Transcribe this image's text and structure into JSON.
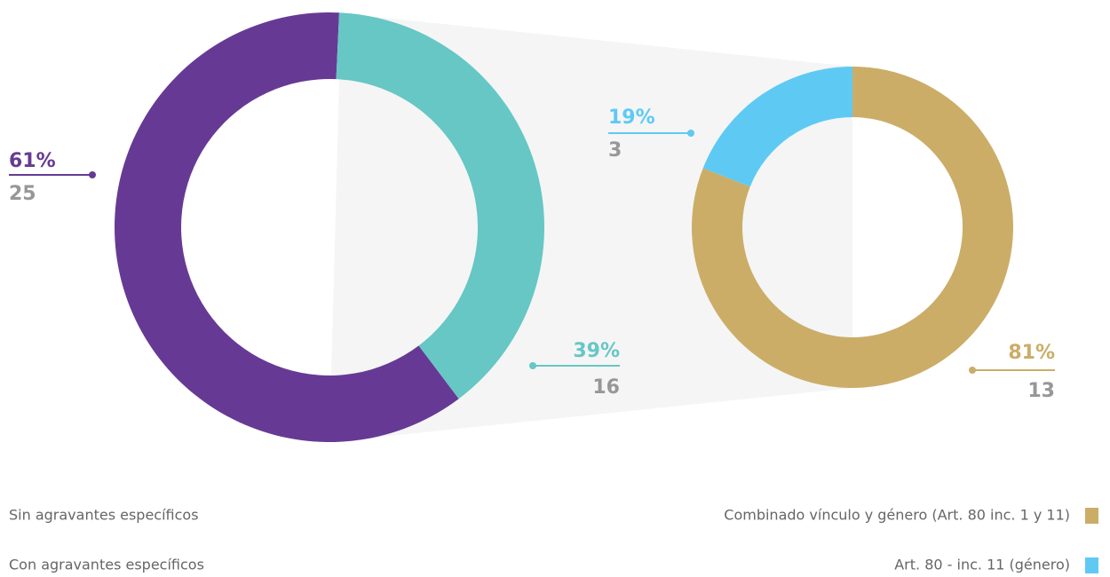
{
  "chart_data": [
    {
      "type": "pie",
      "categories": [
        "Sin agravantes específicos",
        "Con agravantes específicos"
      ],
      "values": [
        61,
        39
      ],
      "value_labels": [
        "61%",
        "39%"
      ],
      "counts": [
        25,
        16
      ],
      "colors": [
        "#663a94",
        "#66c7c5"
      ]
    },
    {
      "type": "pie",
      "categories": [
        "Combinado vínculo y género (Art. 80 inc. 1 y 11)",
        "Art. 80 - inc. 11 (género)"
      ],
      "values": [
        81,
        19
      ],
      "value_labels": [
        "81%",
        "19%"
      ],
      "counts": [
        13,
        3
      ],
      "colors": [
        "#cbad68",
        "#5ecaf4"
      ]
    }
  ]
}
